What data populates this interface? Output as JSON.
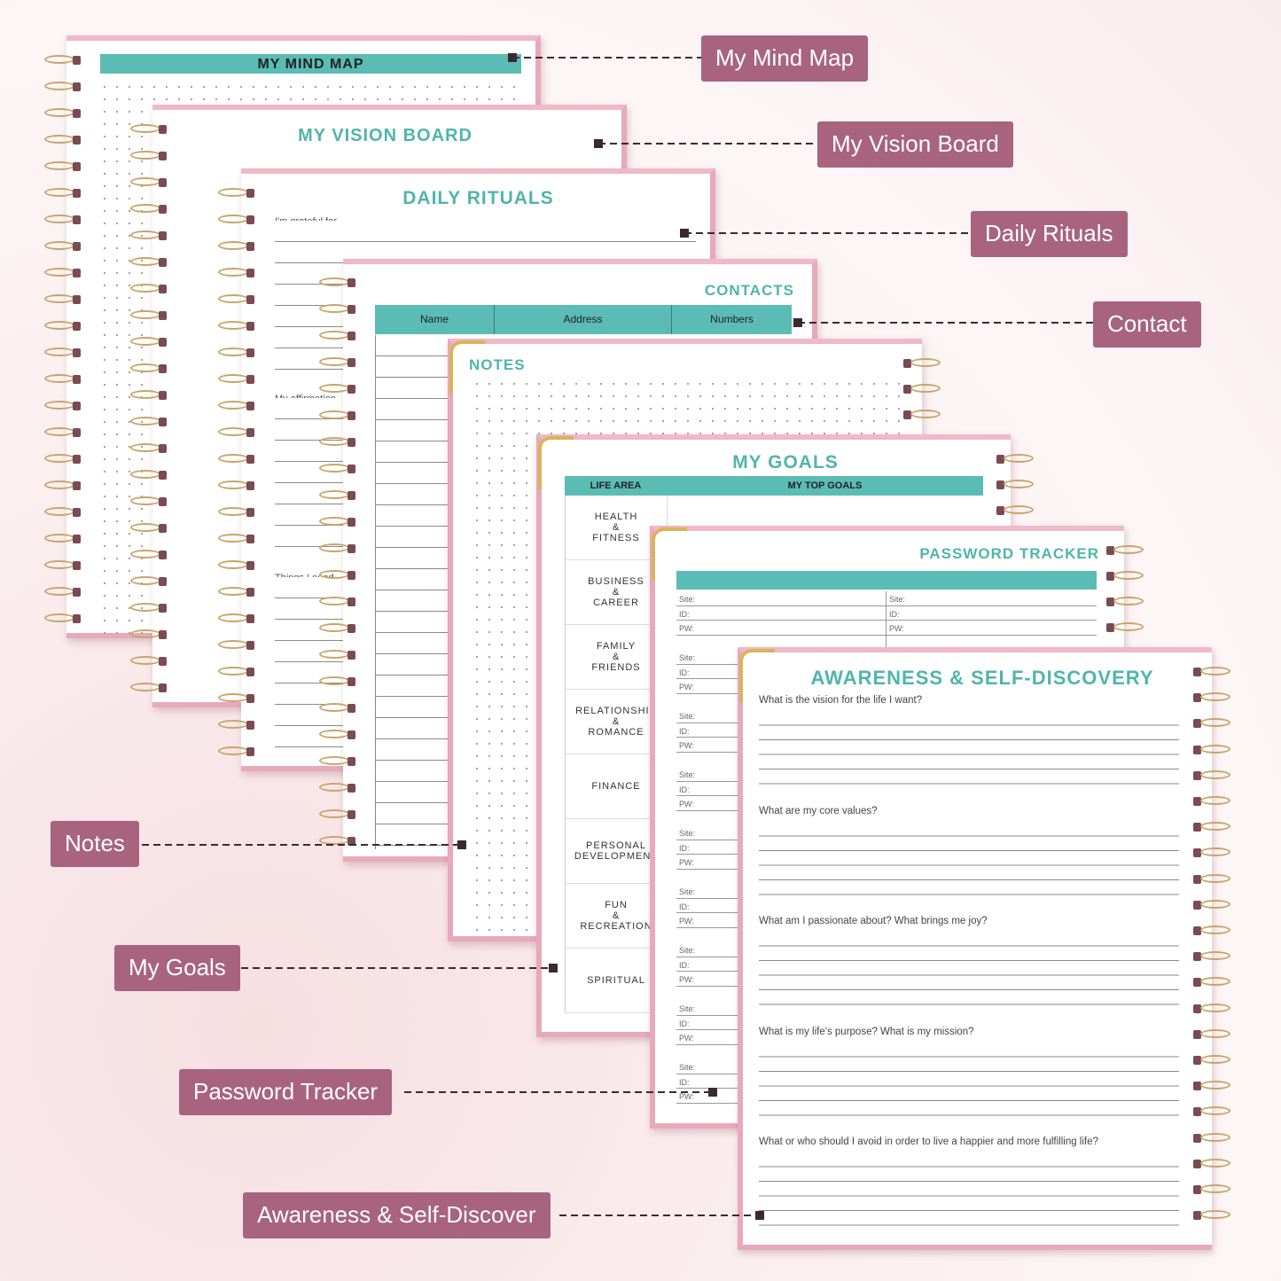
{
  "colors": {
    "accent": "#5bbcb5",
    "label_bg": "#a8637f",
    "connector": "#3a2a30"
  },
  "labels": {
    "mind_map": "My Mind Map",
    "vision_board": "My Vision Board",
    "daily_rituals": "Daily Rituals",
    "contact": "Contact",
    "notes": "Notes",
    "my_goals": "My Goals",
    "password_tracker": "Password Tracker",
    "awareness": "Awareness & Self-Discover"
  },
  "pages": {
    "mind_map": {
      "title": "MY MIND MAP"
    },
    "vision_board": {
      "title": "MY VISION BOARD"
    },
    "daily_rituals": {
      "title": "DAILY RITUALS",
      "prompts": [
        "I'm grateful for...",
        "My affirmation",
        "Things I need"
      ]
    },
    "contacts": {
      "title": "CONTACTS",
      "columns": [
        "Name",
        "Address",
        "Numbers"
      ]
    },
    "notes": {
      "title": "NOTES"
    },
    "my_goals": {
      "title": "MY GOALS",
      "columns": [
        "LIFE AREA",
        "MY TOP GOALS"
      ],
      "areas": [
        "HEALTH\n&\nFITNESS",
        "BUSINESS\n&\nCAREER",
        "FAMILY\n&\nFRIENDS",
        "RELATIONSHIP\n&\nROMANCE",
        "FINANCE",
        "PERSONAL\nDEVELOPMENT",
        "FUN\n&\nRECREATION",
        "SPIRITUAL"
      ]
    },
    "password_tracker": {
      "title": "PASSWORD TRACKER",
      "fields": [
        "Site:",
        "ID:",
        "PW:"
      ]
    },
    "awareness": {
      "title": "AWARENESS & SELF-DISCOVERY",
      "questions": [
        "What is the vision for the life I want?",
        "What are my core values?",
        "What am I passionate about? What brings me joy?",
        "What is my life's purpose? What is my mission?",
        "What or who should I avoid in order to live a happier and more fulfilling life?"
      ]
    }
  }
}
